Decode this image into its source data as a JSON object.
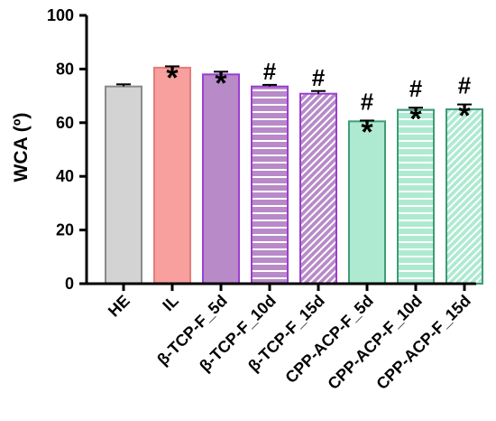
{
  "chart_data": {
    "type": "bar",
    "title": "",
    "xlabel": "",
    "ylabel": "WCA (º)",
    "ylim": [
      0,
      100
    ],
    "yticks": [
      0,
      20,
      40,
      60,
      80,
      100
    ],
    "grid": false,
    "categories": [
      "HE",
      "IL",
      "β-TCP-F_5d",
      "β-TCP-F_10d",
      "β-TCP-F_15d",
      "CPP-ACP-F_5d",
      "CPP-ACP-F_10d",
      "CPP-ACP-F_15d"
    ],
    "values": [
      73.5,
      80.5,
      78.0,
      73.5,
      70.8,
      60.5,
      64.8,
      65.0
    ],
    "errors": [
      0.8,
      0.5,
      1.0,
      0.6,
      1.0,
      0.3,
      0.8,
      1.8
    ],
    "fill_colors": [
      "#d3d3d3",
      "#f7a09e",
      "#b88ac8",
      "#b88ac8",
      "#b88ac8",
      "#aeead2",
      "#aeead2",
      "#aeead2"
    ],
    "edge_colors": [
      "#8a8a8a",
      "#e47d7b",
      "#9b3fd0",
      "#9b3fd0",
      "#9b3fd0",
      "#3f9c77",
      "#3f9c77",
      "#3f9c77"
    ],
    "patterns": [
      "solid",
      "solid",
      "solid",
      "horizontal-lines",
      "diagonal-lines",
      "solid",
      "horizontal-lines",
      "diagonal-lines"
    ],
    "significance": [
      {
        "star": "",
        "hash": ""
      },
      {
        "star": "*",
        "hash": ""
      },
      {
        "star": "*",
        "hash": ""
      },
      {
        "star": "",
        "hash": "#"
      },
      {
        "star": "",
        "hash": "#"
      },
      {
        "star": "*",
        "hash": "#"
      },
      {
        "star": "*",
        "hash": "#"
      },
      {
        "star": "*",
        "hash": "#"
      }
    ]
  }
}
